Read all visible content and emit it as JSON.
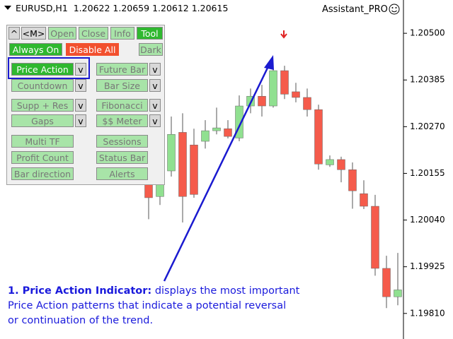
{
  "header": {
    "symbol": "EURUSD,H1",
    "quote": "1.20622 1.20659 1.20612 1.20615",
    "expert": "Assistant_PRO"
  },
  "panel": {
    "top": [
      "^",
      "<M>",
      "Open",
      "Close",
      "Info",
      "Tool"
    ],
    "modes": [
      "Always On",
      "Disable All",
      "Dark"
    ],
    "tools": [
      [
        "Price Action",
        "v",
        "Future Bar",
        "v"
      ],
      [
        "Countdown",
        "v",
        "Bar Size",
        "v"
      ],
      [
        "Supp + Res",
        "v",
        "Fibonacci",
        "v"
      ],
      [
        "Gaps",
        "v",
        "$$ Meter",
        "v"
      ],
      [
        "Multi TF",
        "Sessions"
      ],
      [
        "Profit Count",
        "Status Bar"
      ],
      [
        "Bar direction",
        "Alerts"
      ]
    ]
  },
  "annotation": {
    "heading": "1. Price Action Indicator:",
    "lines": [
      "displays the most important",
      "Price Action patterns that indicate a potential reversal",
      "or continuation of the trend."
    ]
  },
  "chart_data": {
    "type": "candlestick",
    "up_color": "#90e090",
    "down_color": "#f55b4b",
    "open": [
      1.20138,
      1.20098,
      1.20161,
      1.20256,
      1.20225,
      1.20234,
      1.2026,
      1.20265,
      1.20242,
      1.20321,
      1.20345,
      1.20321,
      1.20408,
      1.20356,
      1.20342,
      1.20312,
      1.20176,
      1.20189,
      1.20164,
      1.20105,
      1.20074,
      1.19921,
      1.19851
    ],
    "high": [
      1.20147,
      1.20138,
      1.20295,
      1.20303,
      1.20265,
      1.20286,
      1.20317,
      1.20286,
      1.20347,
      1.20364,
      1.20373,
      1.20425,
      1.2042,
      1.20378,
      1.20364,
      1.20324,
      1.20199,
      1.20196,
      1.20182,
      1.20138,
      1.20102,
      1.19952,
      1.19959
    ],
    "low": [
      1.20042,
      1.20077,
      1.20147,
      1.20034,
      1.20095,
      1.20216,
      1.20251,
      1.20241,
      1.20234,
      1.20303,
      1.20295,
      1.20317,
      1.20338,
      1.2033,
      1.20295,
      1.20164,
      1.20171,
      1.20133,
      1.20068,
      1.20067,
      1.19903,
      1.19823,
      1.1983
    ],
    "close": [
      1.20095,
      1.20129,
      1.20251,
      1.20098,
      1.20103,
      1.2026,
      1.20267,
      1.20246,
      1.20321,
      1.20345,
      1.20321,
      1.20408,
      1.2035,
      1.20342,
      1.20312,
      1.20178,
      1.20189,
      1.20164,
      1.20112,
      1.20074,
      1.19921,
      1.19851,
      1.19868
    ],
    "ylim": [
      1.19747,
      1.20582
    ],
    "yticks": [
      {
        "value": 1.205,
        "label": "1.20500"
      },
      {
        "value": 1.20385,
        "label": "1.20385"
      },
      {
        "value": 1.2027,
        "label": "1.20270"
      },
      {
        "value": 1.20155,
        "label": "1.20155"
      },
      {
        "value": 1.2004,
        "label": "1.20040"
      },
      {
        "value": 1.19925,
        "label": "1.19925"
      },
      {
        "value": 1.1981,
        "label": "1.19810"
      }
    ]
  }
}
